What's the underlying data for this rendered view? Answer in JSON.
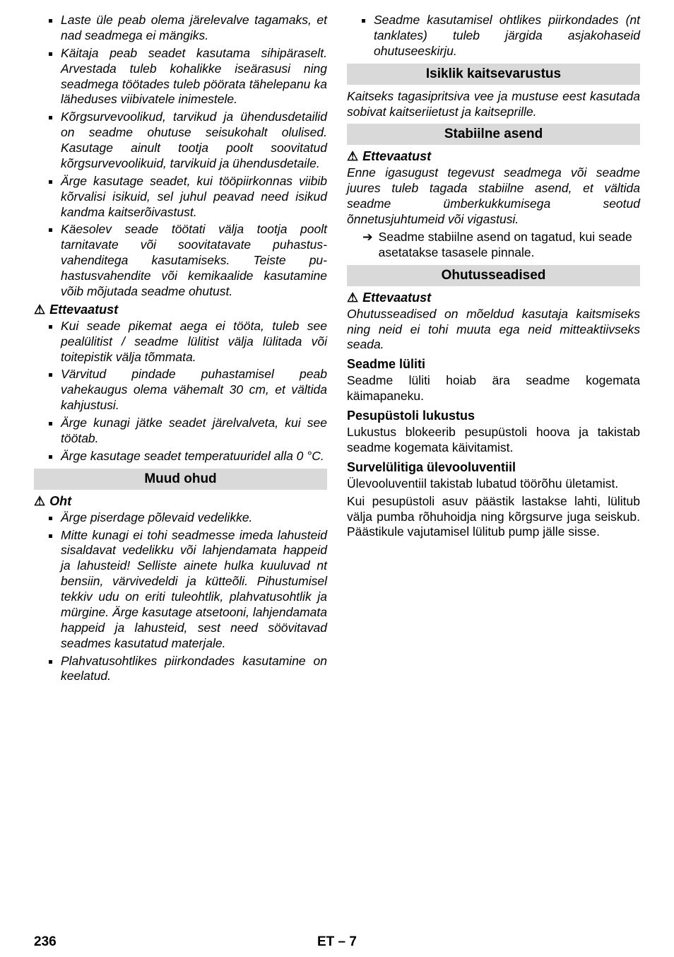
{
  "left": {
    "bullets1": [
      "Laste üle peab olema järelevalve taga­maks, et nad seadmega ei mängiks.",
      "Käitaja peab seadet kasutama sihipära­selt. Arvestada tuleb kohalikke iseära­susi ning seadmega töötades tuleb pöörata tähelepanu ka läheduses viibi­vatele inimestele.",
      "Kõrgsurvevoolikud, tarvikud ja ühen­dusdetailid on seadme ohutuse seisu­kohalt olulised. Kasutage ainult tootja poolt soovitatud kõrgsurvevoolikuid, tarvikuid ja ühendusdetaile.",
      "Ärge kasutage seadet, kui tööpiirkon­nas viibib kõrvalisi isikuid, sel juhul pea­vad need isikud kandma kaitserõivas­tust.",
      "Käesolev seade töötati välja tootja poolt tarnitavate või soovitatavate puhastus­vahenditega kasutamiseks. Teiste pu­hastusvahendite või kemikaalide kasu­tamine võib mõjutada seadme ohutust."
    ],
    "warning1": "Ettevaatust",
    "bullets2": [
      "Kui seade pikemat aega ei tööta, tuleb see pealülitist / seadme lülitist välja lüli­tada või toitepistik välja tõmmata.",
      "Värvitud pindade puhastamisel peab vahekaugus olema vähemalt 30 cm, et vältida kahjustusi.",
      "Ärge kunagi jätke seadet järelvalveta, kui see töötab.",
      "Ärge kasutage seadet temperatuuridel alla 0 °C."
    ],
    "header1": "Muud ohud",
    "warning2": "Oht",
    "bullets3": [
      "Ärge piserdage põlevaid vedelikke.",
      "Mitte kunagi ei tohi seadmesse imeda lahusteid sisaldavat vedelikku või lah­jendamata happeid ja lahusteid! Selliste ainete hulka kuuluvad nt bensiin, värvi­vedeldi ja kütteõli. Pihustumisel tekkiv udu on eriti tuleohtlik, plahvatusohtlik ja mürgine. Ärge kasutage atsetooni, lah­jendamata happeid ja lahusteid, sest need söövitavad seadmes kasutatud materjale.",
      "Plahvatusohtlikes piirkondades kasuta­mine on keelatud."
    ]
  },
  "right": {
    "bullets_top": [
      "Seadme kasutamisel ohtlikes piirkon­dades (nt tanklates) tuleb järgida asja­kohaseid ohutuseeskirju."
    ],
    "header1": "Isiklik kaitsevarustus",
    "para1": "Kaitseks tagasipritsiva vee ja mustuse eest kasutada sobivat kaitseriietust ja kaitsepril­le.",
    "header2": "Stabiilne asend",
    "warning1": "Ettevaatust",
    "para2": "Enne igasugust tegevust seadmega või seadme juures tuleb tagada stabiilne asend, et vältida seadme ümberkukkumi­sega seotud õnnetusjuhtumeid või vigastu­si.",
    "arrow1": "Seadme stabiilne asend on tagatud, kui seade asetatakse tasasele pinnale.",
    "header3": "Ohutusseadised",
    "warning2": "Ettevaatust",
    "para3": "Ohutusseadised on mõeldud kasutaja kaitsmiseks ning neid ei tohi muuta ega neid mitteaktiivseks seada.",
    "sub1": "Seadme lüliti",
    "para4": "Seadme lüliti hoiab ära seadme kogemata käimapaneku.",
    "sub2": "Pesupüstoli lukustus",
    "para5": "Lukustus blokeerib pesupüstoli hoova ja ta­kistab seadme kogemata käivitamist.",
    "sub3": "Survelülitiga ülevooluventiil",
    "para6": "Ülevooluventiil takistab lubatud töörõhu ületamist.",
    "para7": "Kui pesupüstoli asuv päästik lastakse lahti, lülitub välja pumba rõhuhoidja ning kõrg­surve juga seiskub. Päästikule vajutamisel lülitub pump jälle sisse."
  },
  "footer": {
    "pagenum": "236",
    "lang": "ET – 7"
  }
}
